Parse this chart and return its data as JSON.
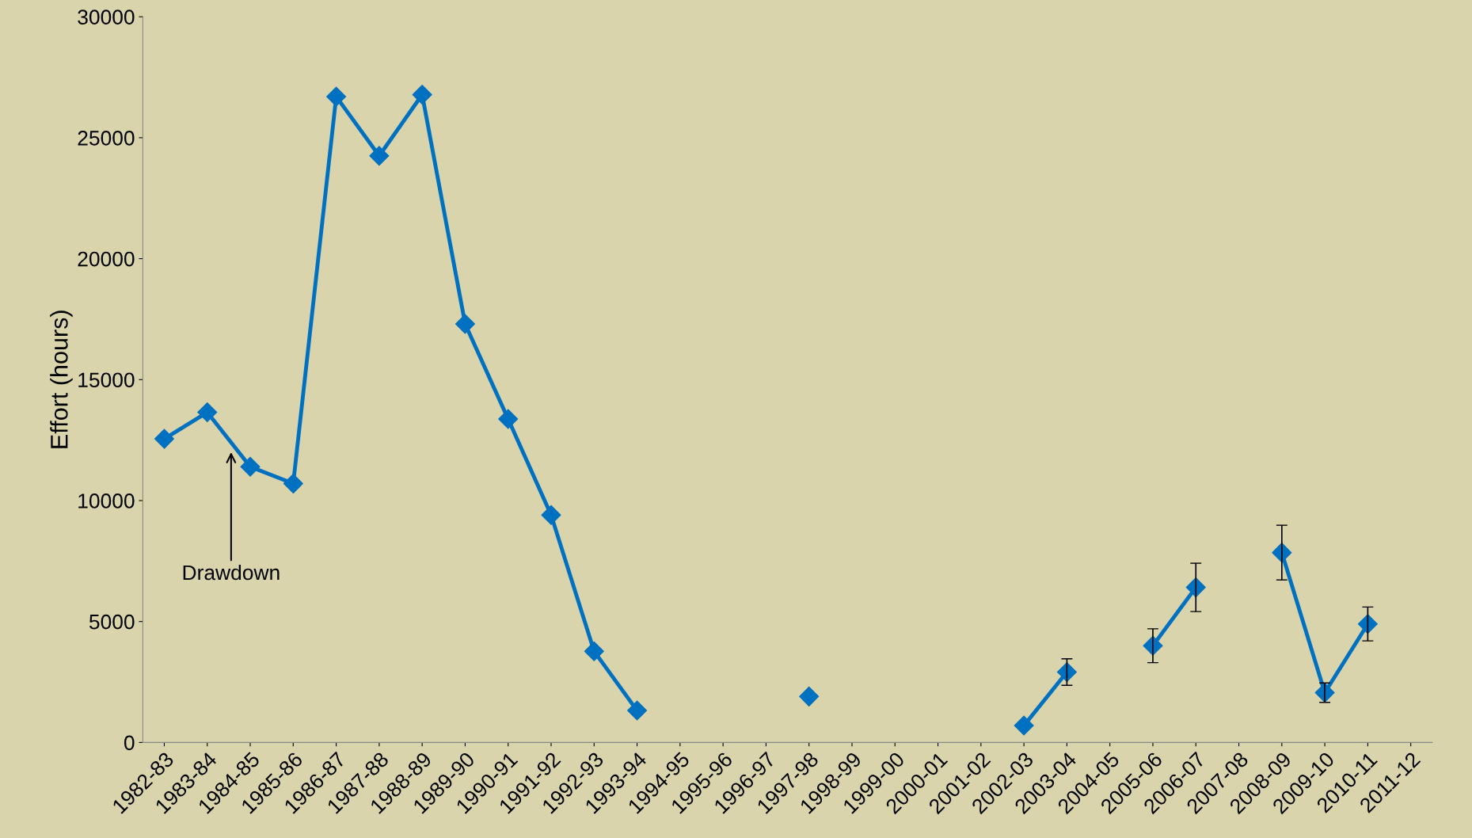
{
  "chart_data": {
    "type": "line",
    "ylabel": "Effort (hours)",
    "categories": [
      "1982-83",
      "1983-84",
      "1984-85",
      "1985-86",
      "1986-87",
      "1987-88",
      "1988-89",
      "1989-90",
      "1990-91",
      "1991-92",
      "1992-93",
      "1993-94",
      "1994-95",
      "1995-96",
      "1996-97",
      "1997-98",
      "1998-99",
      "1999-00",
      "2000-01",
      "2001-02",
      "2002-03",
      "2003-04",
      "2004-05",
      "2005-06",
      "2006-07",
      "2007-08",
      "2008-09",
      "2009-10",
      "2010-11",
      "2011-12"
    ],
    "series": [
      {
        "color": "#0070c0",
        "values": [
          12550,
          13650,
          11400,
          10700,
          26700,
          24250,
          26780,
          17300,
          13370,
          9400,
          3770,
          1320,
          null,
          null,
          null,
          1900,
          null,
          null,
          null,
          null,
          700,
          2910,
          null,
          4000,
          6410,
          null,
          7850,
          2060,
          4900,
          null
        ],
        "errors": [
          null,
          null,
          null,
          null,
          null,
          null,
          null,
          null,
          null,
          null,
          null,
          null,
          null,
          null,
          null,
          null,
          null,
          null,
          null,
          null,
          null,
          550,
          null,
          700,
          1000,
          null,
          1130,
          400,
          700,
          null
        ]
      }
    ],
    "ylim": [
      0,
      30000
    ],
    "yticks": [
      0,
      5000,
      10000,
      15000,
      20000,
      25000,
      30000
    ],
    "marker": "diamond",
    "line_style": "solid",
    "grid": false,
    "legend": false,
    "annotations": [
      "Drawdown"
    ]
  }
}
